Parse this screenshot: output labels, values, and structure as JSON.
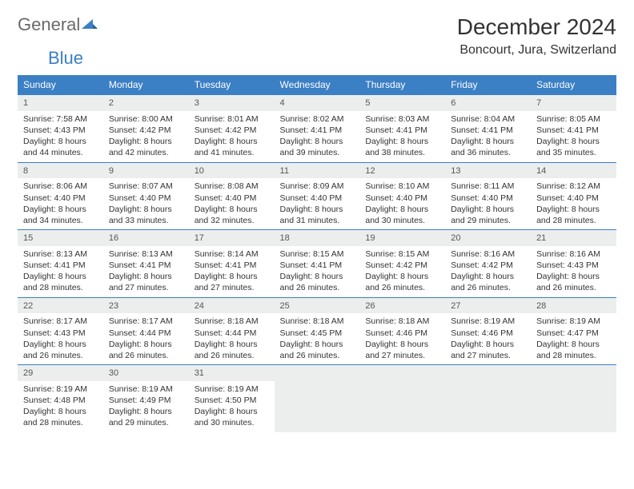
{
  "logo": {
    "part1": "General",
    "part2": "Blue"
  },
  "title": "December 2024",
  "location": "Boncourt, Jura, Switzerland",
  "colors": {
    "header_bg": "#3b7fc4",
    "header_text": "#ffffff",
    "daynum_bg": "#eceeee",
    "border": "#3b7fc4",
    "text": "#333333"
  },
  "day_names": [
    "Sunday",
    "Monday",
    "Tuesday",
    "Wednesday",
    "Thursday",
    "Friday",
    "Saturday"
  ],
  "weeks": [
    [
      {
        "n": "1",
        "sr": "7:58 AM",
        "ss": "4:43 PM",
        "dl": "8 hours and 44 minutes."
      },
      {
        "n": "2",
        "sr": "8:00 AM",
        "ss": "4:42 PM",
        "dl": "8 hours and 42 minutes."
      },
      {
        "n": "3",
        "sr": "8:01 AM",
        "ss": "4:42 PM",
        "dl": "8 hours and 41 minutes."
      },
      {
        "n": "4",
        "sr": "8:02 AM",
        "ss": "4:41 PM",
        "dl": "8 hours and 39 minutes."
      },
      {
        "n": "5",
        "sr": "8:03 AM",
        "ss": "4:41 PM",
        "dl": "8 hours and 38 minutes."
      },
      {
        "n": "6",
        "sr": "8:04 AM",
        "ss": "4:41 PM",
        "dl": "8 hours and 36 minutes."
      },
      {
        "n": "7",
        "sr": "8:05 AM",
        "ss": "4:41 PM",
        "dl": "8 hours and 35 minutes."
      }
    ],
    [
      {
        "n": "8",
        "sr": "8:06 AM",
        "ss": "4:40 PM",
        "dl": "8 hours and 34 minutes."
      },
      {
        "n": "9",
        "sr": "8:07 AM",
        "ss": "4:40 PM",
        "dl": "8 hours and 33 minutes."
      },
      {
        "n": "10",
        "sr": "8:08 AM",
        "ss": "4:40 PM",
        "dl": "8 hours and 32 minutes."
      },
      {
        "n": "11",
        "sr": "8:09 AM",
        "ss": "4:40 PM",
        "dl": "8 hours and 31 minutes."
      },
      {
        "n": "12",
        "sr": "8:10 AM",
        "ss": "4:40 PM",
        "dl": "8 hours and 30 minutes."
      },
      {
        "n": "13",
        "sr": "8:11 AM",
        "ss": "4:40 PM",
        "dl": "8 hours and 29 minutes."
      },
      {
        "n": "14",
        "sr": "8:12 AM",
        "ss": "4:40 PM",
        "dl": "8 hours and 28 minutes."
      }
    ],
    [
      {
        "n": "15",
        "sr": "8:13 AM",
        "ss": "4:41 PM",
        "dl": "8 hours and 28 minutes."
      },
      {
        "n": "16",
        "sr": "8:13 AM",
        "ss": "4:41 PM",
        "dl": "8 hours and 27 minutes."
      },
      {
        "n": "17",
        "sr": "8:14 AM",
        "ss": "4:41 PM",
        "dl": "8 hours and 27 minutes."
      },
      {
        "n": "18",
        "sr": "8:15 AM",
        "ss": "4:41 PM",
        "dl": "8 hours and 26 minutes."
      },
      {
        "n": "19",
        "sr": "8:15 AM",
        "ss": "4:42 PM",
        "dl": "8 hours and 26 minutes."
      },
      {
        "n": "20",
        "sr": "8:16 AM",
        "ss": "4:42 PM",
        "dl": "8 hours and 26 minutes."
      },
      {
        "n": "21",
        "sr": "8:16 AM",
        "ss": "4:43 PM",
        "dl": "8 hours and 26 minutes."
      }
    ],
    [
      {
        "n": "22",
        "sr": "8:17 AM",
        "ss": "4:43 PM",
        "dl": "8 hours and 26 minutes."
      },
      {
        "n": "23",
        "sr": "8:17 AM",
        "ss": "4:44 PM",
        "dl": "8 hours and 26 minutes."
      },
      {
        "n": "24",
        "sr": "8:18 AM",
        "ss": "4:44 PM",
        "dl": "8 hours and 26 minutes."
      },
      {
        "n": "25",
        "sr": "8:18 AM",
        "ss": "4:45 PM",
        "dl": "8 hours and 26 minutes."
      },
      {
        "n": "26",
        "sr": "8:18 AM",
        "ss": "4:46 PM",
        "dl": "8 hours and 27 minutes."
      },
      {
        "n": "27",
        "sr": "8:19 AM",
        "ss": "4:46 PM",
        "dl": "8 hours and 27 minutes."
      },
      {
        "n": "28",
        "sr": "8:19 AM",
        "ss": "4:47 PM",
        "dl": "8 hours and 28 minutes."
      }
    ],
    [
      {
        "n": "29",
        "sr": "8:19 AM",
        "ss": "4:48 PM",
        "dl": "8 hours and 28 minutes."
      },
      {
        "n": "30",
        "sr": "8:19 AM",
        "ss": "4:49 PM",
        "dl": "8 hours and 29 minutes."
      },
      {
        "n": "31",
        "sr": "8:19 AM",
        "ss": "4:50 PM",
        "dl": "8 hours and 30 minutes."
      },
      null,
      null,
      null,
      null
    ]
  ],
  "labels": {
    "sunrise": "Sunrise:",
    "sunset": "Sunset:",
    "daylight": "Daylight:"
  }
}
